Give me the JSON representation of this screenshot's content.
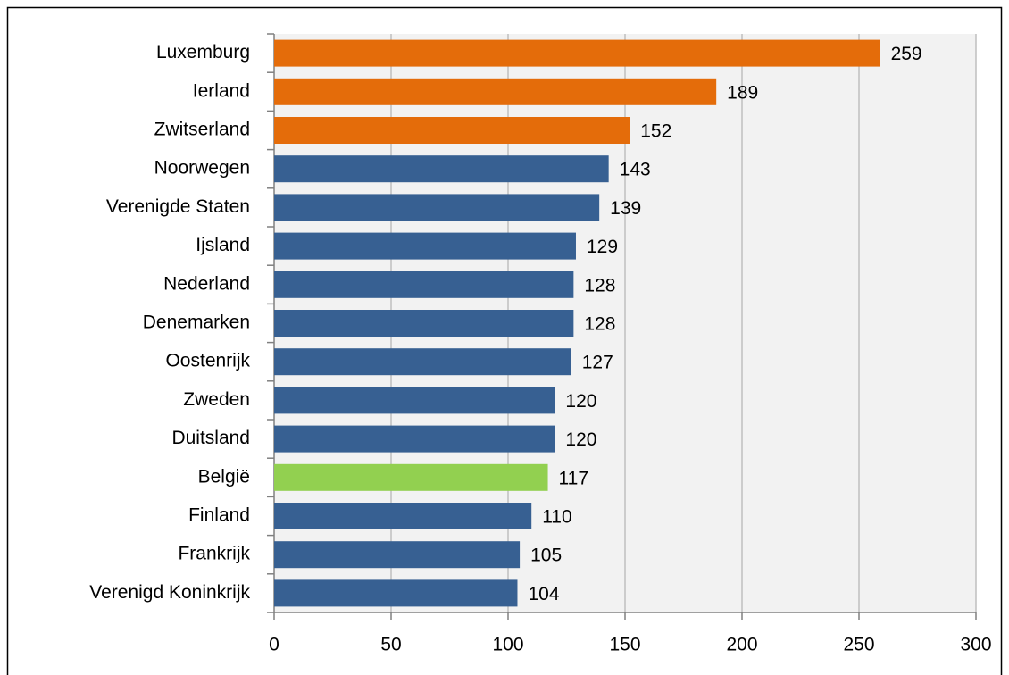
{
  "chart_data": {
    "type": "bar",
    "orientation": "horizontal",
    "categories": [
      "Luxemburg",
      "Ierland",
      "Zwitserland",
      "Noorwegen",
      "Verenigde Staten",
      "Ijsland",
      "Nederland",
      "Denemarken",
      "Oostenrijk",
      "Zweden",
      "Duitsland",
      "België",
      "Finland",
      "Frankrijk",
      "Verenigd Koninkrijk"
    ],
    "values": [
      259,
      189,
      152,
      143,
      139,
      129,
      128,
      128,
      127,
      120,
      120,
      117,
      110,
      105,
      104
    ],
    "colors": [
      "#e46c0a",
      "#e46c0a",
      "#e46c0a",
      "#376092",
      "#376092",
      "#376092",
      "#376092",
      "#376092",
      "#376092",
      "#376092",
      "#376092",
      "#92d050",
      "#376092",
      "#376092",
      "#376092"
    ],
    "xlim": [
      0,
      300
    ],
    "xticks": [
      0,
      50,
      100,
      150,
      200,
      250,
      300
    ],
    "grid": true
  }
}
